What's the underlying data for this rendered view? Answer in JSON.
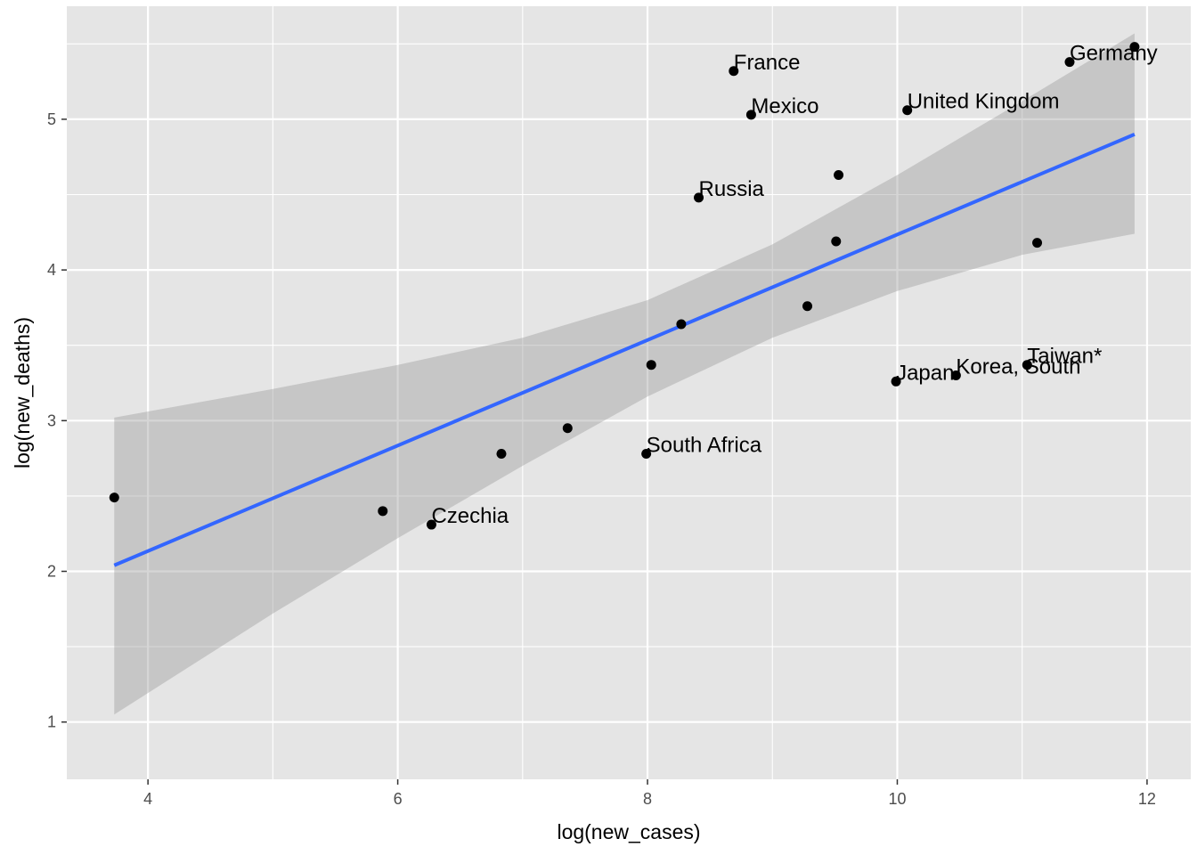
{
  "chart_data": {
    "type": "scatter",
    "title": "",
    "xlabel": "log(new_cases)",
    "ylabel": "log(new_deaths)",
    "xlim": [
      3.35,
      12.35
    ],
    "ylim": [
      0.62,
      5.75
    ],
    "x_ticks": [
      4,
      6,
      8,
      10,
      12
    ],
    "y_ticks": [
      1,
      2,
      3,
      4,
      5
    ],
    "grid": true,
    "legend": "none",
    "colors": {
      "panel": "#e5e5e5",
      "grid": "#ffffff",
      "point": "#000000",
      "line": "#3366ff",
      "band": "#999999"
    },
    "points": [
      {
        "x": 3.73,
        "y": 2.49,
        "label": ""
      },
      {
        "x": 5.88,
        "y": 2.4,
        "label": ""
      },
      {
        "x": 6.27,
        "y": 2.31,
        "label": "Czechia"
      },
      {
        "x": 6.83,
        "y": 2.78,
        "label": ""
      },
      {
        "x": 7.36,
        "y": 2.95,
        "label": ""
      },
      {
        "x": 7.99,
        "y": 2.78,
        "label": "South Africa"
      },
      {
        "x": 8.03,
        "y": 3.37,
        "label": ""
      },
      {
        "x": 8.27,
        "y": 3.64,
        "label": ""
      },
      {
        "x": 8.41,
        "y": 4.48,
        "label": "Russia"
      },
      {
        "x": 8.69,
        "y": 5.32,
        "label": "France"
      },
      {
        "x": 8.83,
        "y": 5.03,
        "label": "Mexico"
      },
      {
        "x": 9.28,
        "y": 3.76,
        "label": ""
      },
      {
        "x": 9.51,
        "y": 4.19,
        "label": ""
      },
      {
        "x": 9.53,
        "y": 4.63,
        "label": ""
      },
      {
        "x": 9.99,
        "y": 3.26,
        "label": "Japan"
      },
      {
        "x": 10.08,
        "y": 5.06,
        "label": "United Kingdom"
      },
      {
        "x": 10.47,
        "y": 3.3,
        "label": "Korea, South"
      },
      {
        "x": 11.04,
        "y": 3.37,
        "label": "Taiwan*"
      },
      {
        "x": 11.12,
        "y": 4.18,
        "label": ""
      },
      {
        "x": 11.38,
        "y": 5.38,
        "label": "Germany"
      },
      {
        "x": 11.9,
        "y": 5.48,
        "label": ""
      }
    ],
    "fit_line": {
      "x": [
        3.73,
        11.9
      ],
      "y": [
        2.04,
        4.9
      ]
    },
    "confidence_band": {
      "x": [
        3.73,
        5.0,
        6.0,
        7.0,
        8.0,
        9.0,
        10.0,
        11.0,
        11.9
      ],
      "lower": [
        1.05,
        1.72,
        2.22,
        2.7,
        3.16,
        3.55,
        3.86,
        4.1,
        4.24
      ],
      "upper": [
        3.02,
        3.21,
        3.37,
        3.55,
        3.8,
        4.17,
        4.63,
        5.12,
        5.57
      ]
    }
  }
}
